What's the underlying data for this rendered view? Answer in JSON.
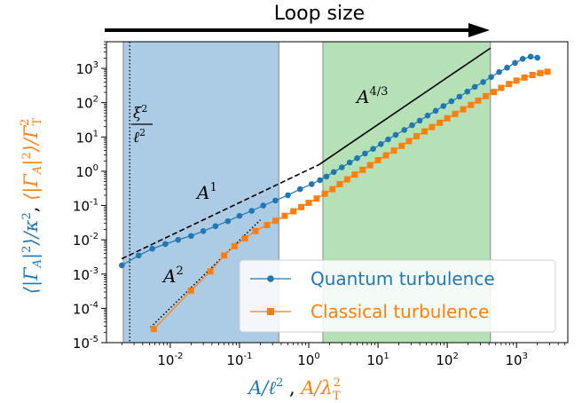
{
  "chart_data": {
    "type": "scatter",
    "title": "Loop size",
    "xlabel": {
      "quantum": "A/ℓ²",
      "separator": " , ",
      "classical": "A/λ_T²"
    },
    "ylabel": {
      "quantum": "⟨|Γ_A|²⟩/κ²",
      "separator": " , ",
      "classical": "⟨|Γ_A|²⟩/Γ_T²"
    },
    "x_scale": "log",
    "y_scale": "log",
    "xlim": [
      0.0012,
      5500
    ],
    "ylim": [
      1e-05,
      6000
    ],
    "x_ticks": [
      {
        "mant": "10",
        "exp": "-2",
        "value": 0.01
      },
      {
        "mant": "10",
        "exp": "-1",
        "value": 0.1
      },
      {
        "mant": "10",
        "exp": "0",
        "value": 1
      },
      {
        "mant": "10",
        "exp": "1",
        "value": 10
      },
      {
        "mant": "10",
        "exp": "2",
        "value": 100
      },
      {
        "mant": "10",
        "exp": "3",
        "value": 1000
      }
    ],
    "y_ticks": [
      {
        "mant": "10",
        "exp": "-5",
        "value": 1e-05
      },
      {
        "mant": "10",
        "exp": "-4",
        "value": 0.0001
      },
      {
        "mant": "10",
        "exp": "-3",
        "value": 0.001
      },
      {
        "mant": "10",
        "exp": "-2",
        "value": 0.01
      },
      {
        "mant": "10",
        "exp": "-1",
        "value": 0.1
      },
      {
        "mant": "10",
        "exp": "0",
        "value": 1
      },
      {
        "mant": "10",
        "exp": "1",
        "value": 10
      },
      {
        "mant": "10",
        "exp": "2",
        "value": 100
      },
      {
        "mant": "10",
        "exp": "3",
        "value": 1000
      }
    ],
    "shaded_regions": [
      {
        "x0": 0.0021,
        "x1": 0.37,
        "color": "#7fafd6"
      },
      {
        "x0": 1.6,
        "x1": 420,
        "color": "#8fcf8f"
      }
    ],
    "vline": {
      "x": 0.0026,
      "label": "ξ²/ℓ²"
    },
    "series": [
      {
        "name": "Quantum turbulence",
        "color": "#1f77b4",
        "marker": "circle",
        "x": [
          0.002,
          0.0035,
          0.0055,
          0.0085,
          0.013,
          0.02,
          0.03,
          0.045,
          0.068,
          0.1,
          0.15,
          0.22,
          0.33,
          0.5,
          0.75,
          1.1,
          1.45,
          1.8,
          2.3,
          3.0,
          3.9,
          5.0,
          6.5,
          8.5,
          11,
          14,
          18,
          24,
          31,
          40,
          52,
          68,
          88,
          115,
          150,
          195,
          250,
          330,
          430,
          560,
          730,
          950,
          1230,
          1600,
          2000
        ],
        "y": [
          0.0018,
          0.0035,
          0.0055,
          0.0075,
          0.01,
          0.013,
          0.018,
          0.025,
          0.035,
          0.05,
          0.07,
          0.1,
          0.14,
          0.2,
          0.3,
          0.42,
          0.55,
          0.7,
          0.95,
          1.3,
          1.8,
          2.4,
          3.3,
          4.5,
          6.2,
          8.5,
          11.5,
          16,
          22,
          30,
          42,
          58,
          80,
          110,
          150,
          210,
          290,
          400,
          560,
          780,
          1050,
          1450,
          1900,
          2200,
          2050
        ]
      },
      {
        "name": "Classical turbulence",
        "color": "#ff7f0e",
        "marker": "square",
        "x": [
          0.0058,
          0.02,
          0.038,
          0.06,
          0.085,
          0.12,
          0.17,
          0.25,
          0.33,
          0.45,
          0.6,
          0.78,
          1.0,
          1.3,
          1.7,
          2.2,
          2.8,
          3.6,
          4.6,
          6.0,
          7.7,
          10,
          13,
          17,
          22,
          28,
          36,
          47,
          60,
          78,
          100,
          130,
          170,
          220,
          280,
          360,
          470,
          600,
          780,
          1000,
          1300,
          1700,
          2200,
          2800
        ],
        "y": [
          2.5e-05,
          0.00033,
          0.0012,
          0.0035,
          0.0065,
          0.011,
          0.018,
          0.027,
          0.036,
          0.05,
          0.068,
          0.09,
          0.12,
          0.16,
          0.22,
          0.3,
          0.42,
          0.58,
          0.8,
          1.1,
          1.5,
          2.1,
          2.9,
          4.0,
          5.5,
          7.6,
          10.5,
          14.5,
          19.5,
          26,
          35,
          47,
          64,
          86,
          115,
          155,
          205,
          270,
          350,
          440,
          540,
          640,
          730,
          800
        ]
      }
    ],
    "reference_lines": [
      {
        "label_base": "A",
        "label_exp": "1",
        "x0": 0.002,
        "y0": 0.0028,
        "x1": 1.4,
        "y1": 1.55,
        "style": "dashed"
      },
      {
        "label_base": "A",
        "label_exp": "4/3",
        "x0": 1.4,
        "y0": 1.55,
        "x1": 420,
        "y1": 3900,
        "style": "solid"
      },
      {
        "label_base": "A",
        "label_exp": "2",
        "x0": 0.0052,
        "y0": 2.8e-05,
        "x1": 0.2,
        "y1": 0.038,
        "style": "dotted"
      }
    ],
    "legend": {
      "placement": "lower-right"
    }
  }
}
